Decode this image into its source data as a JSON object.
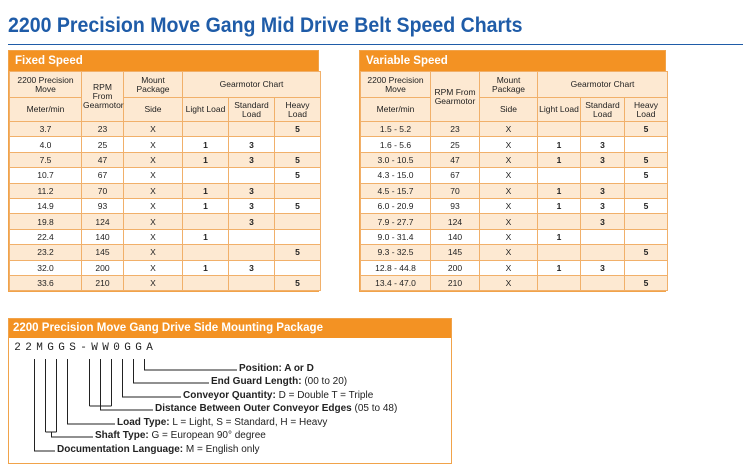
{
  "title": "2200 Precision Move Gang Mid Drive Belt Speed Charts",
  "fixed": {
    "heading": "Fixed Speed",
    "col_header": {
      "precision": "2200 Precision Move",
      "meter": "Meter/min",
      "rpm": "RPM From Gearmotor",
      "mount": "Mount Package",
      "side": "Side",
      "gearmotor": "Gearmotor Chart",
      "light": "Light Load",
      "standard": "Standard Load",
      "heavy": "Heavy Load"
    },
    "rows": [
      [
        "3.7",
        "23",
        "X",
        "",
        "",
        "5"
      ],
      [
        "4.0",
        "25",
        "X",
        "1",
        "3",
        ""
      ],
      [
        "7.5",
        "47",
        "X",
        "1",
        "3",
        "5"
      ],
      [
        "10.7",
        "67",
        "X",
        "",
        "",
        "5"
      ],
      [
        "11.2",
        "70",
        "X",
        "1",
        "3",
        ""
      ],
      [
        "14.9",
        "93",
        "X",
        "1",
        "3",
        "5"
      ],
      [
        "19.8",
        "124",
        "X",
        "",
        "3",
        ""
      ],
      [
        "22.4",
        "140",
        "X",
        "1",
        "",
        ""
      ],
      [
        "23.2",
        "145",
        "X",
        "",
        "",
        "5"
      ],
      [
        "32.0",
        "200",
        "X",
        "1",
        "3",
        ""
      ],
      [
        "33.6",
        "210",
        "X",
        "",
        "",
        "5"
      ]
    ]
  },
  "variable": {
    "heading": "Variable Speed",
    "col_header": {
      "precision": "2200 Precision Move",
      "meter": "Meter/min",
      "rpm": "RPM From Gearmotor",
      "mount": "Mount Package",
      "side": "Side",
      "gearmotor": "Gearmotor Chart",
      "light": "Light Load",
      "standard": "Standard Load",
      "heavy": "Heavy Load"
    },
    "rows": [
      [
        "1.5 - 5.2",
        "23",
        "X",
        "",
        "",
        "5"
      ],
      [
        "1.6 - 5.6",
        "25",
        "X",
        "1",
        "3",
        ""
      ],
      [
        "3.0 - 10.5",
        "47",
        "X",
        "1",
        "3",
        "5"
      ],
      [
        "4.3 - 15.0",
        "67",
        "X",
        "",
        "",
        "5"
      ],
      [
        "4.5 - 15.7",
        "70",
        "X",
        "1",
        "3",
        ""
      ],
      [
        "6.0 - 20.9",
        "93",
        "X",
        "1",
        "3",
        "5"
      ],
      [
        "7.9 - 27.7",
        "124",
        "X",
        "",
        "3",
        ""
      ],
      [
        "9.0 - 31.4",
        "140",
        "X",
        "1",
        "",
        ""
      ],
      [
        "9.3 - 32.5",
        "145",
        "X",
        "",
        "",
        "5"
      ],
      [
        "12.8 - 44.8",
        "200",
        "X",
        "1",
        "3",
        ""
      ],
      [
        "13.4 - 47.0",
        "210",
        "X",
        "",
        "",
        "5"
      ]
    ]
  },
  "mounting": {
    "heading": "2200 Precision Move Gang Drive Side Mounting Package",
    "code_chars": [
      "2",
      "2",
      "M",
      "G",
      "G",
      "S",
      "-",
      "W",
      "W",
      "0",
      "G",
      "G",
      "A"
    ],
    "labels": [
      {
        "key": "Position:",
        "value": " A or D"
      },
      {
        "key": "End Guard Length:",
        "value": " (00 to 20)"
      },
      {
        "key": "Conveyor Quantity:",
        "value": "  D = Double  T = Triple"
      },
      {
        "key": "Distance Between Outer Conveyor Edges",
        "value": " (05 to 48)"
      },
      {
        "key": "Load Type:",
        "value": "  L = Light,  S = Standard,  H = Heavy"
      },
      {
        "key": "Shaft Type:",
        "value": "  G = European 90° degree"
      },
      {
        "key": "Documentation Language:",
        "value": "  M = English only"
      }
    ]
  }
}
